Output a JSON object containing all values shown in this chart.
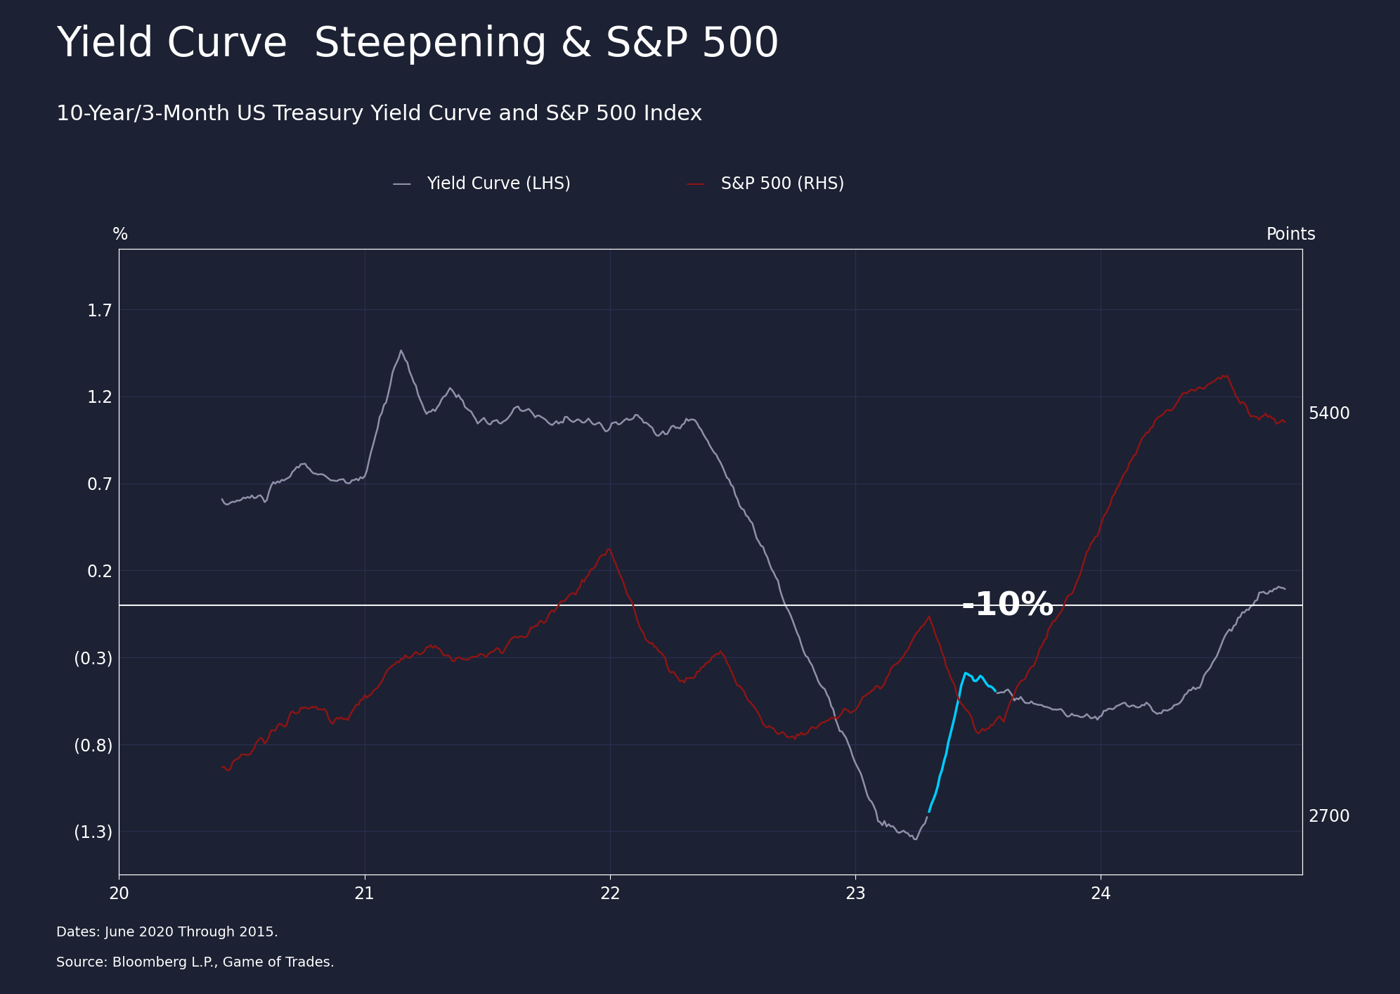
{
  "title": "Yield Curve  Steepening & S&P 500",
  "subtitle": "10-Year/3-Month US Treasury Yield Curve and S&P 500 Index",
  "footnote1": "Dates: June 2020 Through 2015.",
  "footnote2": "Source: Bloomberg L.P., Game of Trades.",
  "ylabel_left": "%",
  "ylabel_right": "Points",
  "legend_yield": "Yield Curve (LHS)",
  "legend_sp": "S&P 500 (RHS)",
  "annotation": "-10%",
  "bg_color": "#1c2133",
  "grid_color": "#2a3050",
  "line_color_yield": "#9090aa",
  "line_color_sp": "#8b1515",
  "line_color_cyan": "#00ccff",
  "zero_line_color": "#ffffff",
  "text_color": "#ffffff",
  "ylim_left": [
    -1.55,
    2.05
  ],
  "ylim_right": [
    2300,
    6500
  ],
  "yticks_left": [
    1.7,
    1.2,
    0.7,
    0.2,
    -0.3,
    -0.8,
    -1.3
  ],
  "ytick_labels_left": [
    "1.7",
    "1.2",
    "0.7",
    "0.2",
    "(0.3)",
    "(0.8)",
    "(1.3)"
  ],
  "yticks_right": [
    2700,
    5400
  ],
  "ytick_labels_right": [
    "2700",
    "5400"
  ],
  "xticks": [
    2020,
    2021,
    2022,
    2023,
    2024
  ],
  "xtick_labels": [
    "20",
    "21",
    "22",
    "23",
    "24"
  ],
  "xlim": [
    2020.35,
    2024.82
  ]
}
